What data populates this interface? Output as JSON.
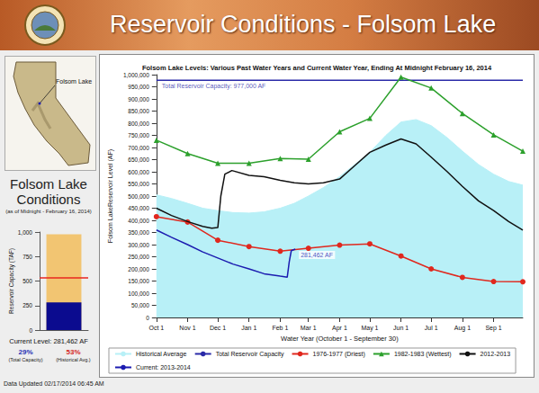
{
  "header": {
    "title": "Reservoir Conditions - Folsom Lake"
  },
  "map": {
    "label": "Folsom Lake"
  },
  "conditions": {
    "title": "Folsom Lake Conditions",
    "subtitle": "(as of Midnight - February 16, 2014)",
    "current_level": "Current Level: 281,462 AF",
    "stats": [
      {
        "value": "29%",
        "label": "(Total Capacity)",
        "color": "#1f2fb5"
      },
      {
        "value": "53%",
        "label": "(Historical Avg.)",
        "color": "#d4261f"
      }
    ]
  },
  "footer": "Data Updated 02/17/2014 06:45 AM",
  "chart_data": [
    {
      "type": "line",
      "title": "Folsom Lake Levels: Various Past Water Years and Current Water Year, Ending At Midnight February 16, 2014",
      "x_label": "Water Year (October 1 - September 30)",
      "y_label": "Folsom LakeReservoir Level (AF)",
      "xlim": [
        0,
        364
      ],
      "xticks": [
        {
          "value": 0,
          "label": "Oct 1"
        },
        {
          "value": 31,
          "label": "Nov 1"
        },
        {
          "value": 61,
          "label": "Dec 1"
        },
        {
          "value": 92,
          "label": "Jan 1"
        },
        {
          "value": 123,
          "label": "Feb 1"
        },
        {
          "value": 151,
          "label": "Mar 1"
        },
        {
          "value": 182,
          "label": "Apr 1"
        },
        {
          "value": 212,
          "label": "May 1"
        },
        {
          "value": 243,
          "label": "Jun 1"
        },
        {
          "value": 273,
          "label": "Jul 1"
        },
        {
          "value": 304,
          "label": "Aug 1"
        },
        {
          "value": 335,
          "label": "Sep 1"
        }
      ],
      "ylim": [
        0,
        1000000
      ],
      "yticks": [
        0,
        {
          "value": 50000,
          "label": "50,000"
        },
        {
          "value": 100000,
          "label": "100,000"
        },
        {
          "value": 150000,
          "label": "150,000"
        },
        {
          "value": 200000,
          "label": "200,000"
        },
        {
          "value": 250000,
          "label": "250,000"
        },
        {
          "value": 300000,
          "label": "300,000"
        },
        {
          "value": 350000,
          "label": "350,000"
        },
        {
          "value": 400000,
          "label": "400,000"
        },
        {
          "value": 450000,
          "label": "450,000"
        },
        {
          "value": 500000,
          "label": "500,000"
        },
        {
          "value": 550000,
          "label": "550,000"
        },
        {
          "value": 600000,
          "label": "600,000"
        },
        {
          "value": 650000,
          "label": "650,000"
        },
        {
          "value": 700000,
          "label": "700,000"
        },
        {
          "value": 750000,
          "label": "750,000"
        },
        {
          "value": 800000,
          "label": "800,000"
        },
        {
          "value": 850000,
          "label": "850,000"
        },
        {
          "value": 900000,
          "label": "900,000"
        },
        {
          "value": 950000,
          "label": "950,000"
        },
        {
          "value": 1000000,
          "label": "1,000,000"
        }
      ],
      "grid": false,
      "legend": "bottom",
      "series": [
        {
          "name": "Historical Average",
          "type": "area",
          "color": "#b8f0f7",
          "marker": "none",
          "line_style": "solid",
          "x": [
            0,
            15,
            31,
            46,
            61,
            76,
            92,
            107,
            123,
            137,
            151,
            166,
            182,
            197,
            212,
            228,
            243,
            258,
            273,
            289,
            304,
            320,
            335,
            350,
            364
          ],
          "values": [
            505000,
            490000,
            470000,
            450000,
            440000,
            432000,
            430000,
            435000,
            450000,
            470000,
            500000,
            535000,
            580000,
            630000,
            680000,
            750000,
            805000,
            815000,
            790000,
            740000,
            685000,
            630000,
            590000,
            560000,
            545000
          ]
        },
        {
          "name": "Total Reservoir Capacity",
          "type": "line",
          "color": "#2a2aa8",
          "marker": "none",
          "line_style": "solid",
          "x": [
            0,
            364
          ],
          "values": [
            977000,
            977000
          ]
        },
        {
          "name": "1976-1977 (Driest)",
          "type": "line",
          "color": "#e0281e",
          "marker": "circle",
          "line_style": "solid",
          "x": [
            0,
            31,
            61,
            92,
            123,
            151,
            182,
            212,
            243,
            273,
            304,
            335,
            364
          ],
          "values": [
            415000,
            393000,
            318000,
            292000,
            273000,
            285000,
            298000,
            303000,
            253000,
            200000,
            165000,
            148000,
            147000
          ]
        },
        {
          "name": "1982-1983 (Wettest)",
          "type": "line",
          "color": "#2ca02c",
          "marker": "triangle",
          "line_style": "solid",
          "x": [
            0,
            31,
            61,
            92,
            123,
            151,
            182,
            212,
            243,
            273,
            304,
            335,
            364
          ],
          "values": [
            730000,
            675000,
            635000,
            635000,
            655000,
            652000,
            765000,
            820000,
            990000,
            945000,
            840000,
            752000,
            685000
          ]
        },
        {
          "name": "2012-2013",
          "type": "line",
          "color": "#111111",
          "marker": "none",
          "line_style": "solid",
          "x": [
            0,
            15,
            31,
            46,
            55,
            61,
            64,
            68,
            75,
            92,
            107,
            123,
            137,
            151,
            166,
            182,
            197,
            212,
            228,
            243,
            258,
            273,
            289,
            304,
            320,
            335,
            350,
            364
          ],
          "values": [
            450000,
            420000,
            395000,
            375000,
            368000,
            370000,
            500000,
            590000,
            605000,
            585000,
            580000,
            565000,
            555000,
            550000,
            555000,
            570000,
            625000,
            680000,
            710000,
            735000,
            715000,
            660000,
            600000,
            540000,
            480000,
            440000,
            395000,
            360000
          ]
        },
        {
          "name": "Current: 2013-2014",
          "type": "line",
          "color": "#1c1cb0",
          "marker": "none",
          "line_style": "solid",
          "x": [
            0,
            15,
            31,
            46,
            61,
            76,
            92,
            107,
            123,
            130,
            132,
            134,
            138
          ],
          "values": [
            360000,
            330000,
            300000,
            270000,
            245000,
            220000,
            200000,
            180000,
            170000,
            166000,
            230000,
            275000,
            281462
          ]
        }
      ],
      "annotations": [
        {
          "text": "Total Reservoir Capacity: 977,000 AF",
          "x": 0,
          "y": 977000,
          "color": "#2a2aa8"
        },
        {
          "text": "281,462 AF",
          "x": 138,
          "y": 281462,
          "color": "#1c1cb0"
        }
      ]
    },
    {
      "type": "bar",
      "y_label": "Reservoir Capacity (TAF)",
      "categories": [
        null
      ],
      "ylim": [
        0,
        1000
      ],
      "yticks": [
        0,
        250,
        500,
        750,
        {
          "value": 1000,
          "label": "1,000"
        }
      ],
      "grid": false,
      "tick_labels": "y",
      "series": [
        {
          "type": "bar",
          "color": "#f2c572",
          "values": [
            977
          ]
        },
        {
          "type": "bar",
          "color": "#0b0b8f",
          "values": [
            281.462
          ]
        },
        {
          "type": "hline",
          "color": "#e8261f",
          "values": [
            531
          ]
        }
      ]
    }
  ]
}
